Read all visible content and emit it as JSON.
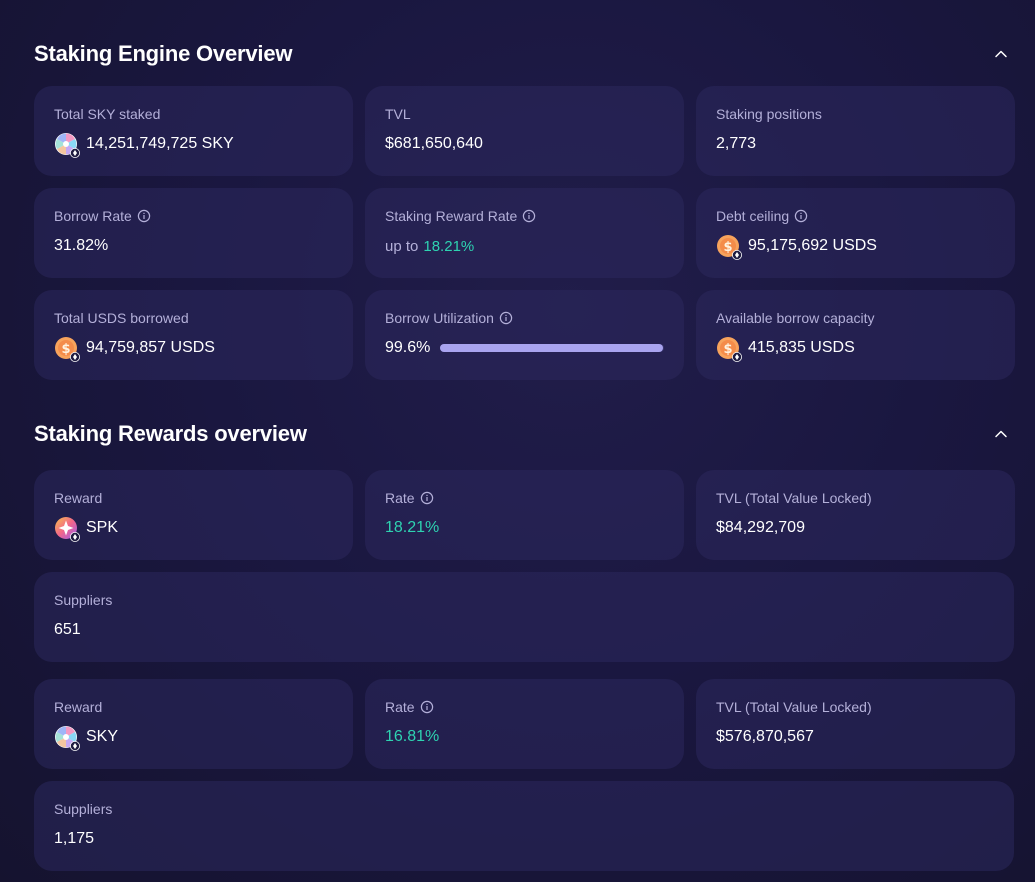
{
  "engine": {
    "title": "Staking Engine Overview",
    "total_sky_staked": {
      "label": "Total SKY staked",
      "value": "14,251,749,725 SKY",
      "icon": "sky-token-icon"
    },
    "tvl": {
      "label": "TVL",
      "value": "$681,650,640"
    },
    "positions": {
      "label": "Staking positions",
      "value": "2,773"
    },
    "borrow_rate": {
      "label": "Borrow Rate",
      "value": "31.82%"
    },
    "reward_rate": {
      "label": "Staking Reward Rate",
      "prefix": "up to",
      "value": "18.21%"
    },
    "debt_ceiling": {
      "label": "Debt ceiling",
      "value": "95,175,692 USDS",
      "icon": "usds-token-icon"
    },
    "total_borrowed": {
      "label": "Total USDS borrowed",
      "value": "94,759,857 USDS",
      "icon": "usds-token-icon"
    },
    "utilization": {
      "label": "Borrow Utilization",
      "value": "99.6%",
      "fraction": 0.996
    },
    "available": {
      "label": "Available borrow capacity",
      "value": "415,835 USDS",
      "icon": "usds-token-icon"
    }
  },
  "rewards": {
    "title": "Staking Rewards overview",
    "items": [
      {
        "reward_label": "Reward",
        "token": "SPK",
        "icon": "spk-token-icon",
        "rate_label": "Rate",
        "rate": "18.21%",
        "tvl_label": "TVL (Total Value Locked)",
        "tvl": "$84,292,709",
        "suppliers_label": "Suppliers",
        "suppliers": "651"
      },
      {
        "reward_label": "Reward",
        "token": "SKY",
        "icon": "sky-token-icon",
        "rate_label": "Rate",
        "rate": "16.81%",
        "tvl_label": "TVL (Total Value Locked)",
        "tvl": "$576,870,567",
        "suppliers_label": "Suppliers",
        "suppliers": "1,175"
      }
    ]
  },
  "colors": {
    "background": "#15132f",
    "card": "#2c285c",
    "accent_green": "#2ed3b1",
    "label": "#b4b0d9",
    "bar": "#a9a4ef"
  }
}
